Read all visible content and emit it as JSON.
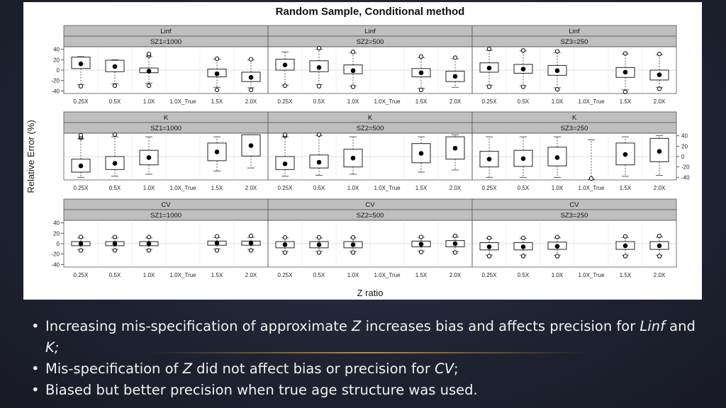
{
  "chart_data": {
    "type": "boxplot",
    "title": "Random Sample, Conditional method",
    "xlabel": "Z ratio",
    "ylabel": "Relative Error (%)",
    "categories": [
      "0.25X",
      "0.5X",
      "1.0X",
      "1.0X_True",
      "1.5X",
      "2.0X"
    ],
    "ylim": [
      -45,
      45
    ],
    "yticks": [
      40,
      20,
      0,
      -20,
      -40
    ],
    "panels": [
      {
        "param": "Linf",
        "size": "SZ1=1000",
        "boxes": [
          {
            "median": 12,
            "q1": 3,
            "q3": 25,
            "wl": -28,
            "wh": 26,
            "out": [
              -31
            ]
          },
          {
            "median": 7,
            "q1": -3,
            "q3": 19,
            "wl": -26,
            "wh": 20,
            "out": [
              -30
            ]
          },
          {
            "median": -2,
            "q1": -5,
            "q3": 4,
            "wl": -25,
            "wh": 26,
            "out": [
              -30,
              28,
              31
            ]
          },
          null,
          {
            "median": -7,
            "q1": -13,
            "q3": 2,
            "wl": -33,
            "wh": 21,
            "out": [
              -38,
              22
            ]
          },
          {
            "median": -14,
            "q1": -22,
            "q3": -4,
            "wl": -34,
            "wh": 20,
            "out": [
              -38,
              21
            ]
          }
        ]
      },
      {
        "param": "Linf",
        "size": "SZ2=500",
        "boxes": [
          {
            "median": 10,
            "q1": 0,
            "q3": 21,
            "wl": -29,
            "wh": 35,
            "out": [
              -30
            ]
          },
          {
            "median": 5,
            "q1": -3,
            "q3": 18,
            "wl": -28,
            "wh": 40,
            "out": [
              -31,
              43
            ]
          },
          {
            "median": -1,
            "q1": -7,
            "q3": 10,
            "wl": -30,
            "wh": 33,
            "out": [
              -32,
              35
            ]
          },
          null,
          {
            "median": -5,
            "q1": -13,
            "q3": 3,
            "wl": -35,
            "wh": 24,
            "out": [
              -38,
              26
            ]
          },
          {
            "median": -12,
            "q1": -22,
            "q3": -2,
            "wl": -33,
            "wh": 22,
            "out": [
              24
            ]
          }
        ]
      },
      {
        "param": "Linf",
        "size": "SZ3=250",
        "boxes": [
          {
            "median": 4,
            "q1": -4,
            "q3": 14,
            "wl": -29,
            "wh": 38,
            "out": [
              -32,
              41
            ]
          },
          {
            "median": 2,
            "q1": -6,
            "q3": 11,
            "wl": -30,
            "wh": 37,
            "out": [
              -32,
              38
            ]
          },
          {
            "median": -1,
            "q1": -10,
            "q3": 9,
            "wl": -34,
            "wh": 34,
            "out": [
              -37,
              36
            ]
          },
          null,
          {
            "median": -4,
            "q1": -14,
            "q3": 5,
            "wl": -38,
            "wh": 31,
            "out": [
              -42,
              32
            ]
          },
          {
            "median": -9,
            "q1": -19,
            "q3": 0,
            "wl": -33,
            "wh": 30,
            "out": [
              -36,
              31
            ]
          }
        ]
      },
      {
        "param": "K",
        "size": "SZ1=1000",
        "boxes": [
          {
            "median": -18,
            "q1": -30,
            "q3": -5,
            "wl": -40,
            "wh": 34,
            "out": [
              36,
              38,
              41
            ]
          },
          {
            "median": -13,
            "q1": -25,
            "q3": 0,
            "wl": -38,
            "wh": 38,
            "out": [
              43
            ]
          },
          {
            "median": -2,
            "q1": -16,
            "q3": 12,
            "wl": -34,
            "wh": 38,
            "out": []
          },
          null,
          {
            "median": 9,
            "q1": -8,
            "q3": 26,
            "wl": -28,
            "wh": 38,
            "out": []
          },
          {
            "median": 21,
            "q1": 1,
            "q3": 42,
            "wl": -22,
            "wh": 42,
            "out": []
          }
        ]
      },
      {
        "param": "K",
        "size": "SZ2=500",
        "boxes": [
          {
            "median": -14,
            "q1": -25,
            "q3": 0,
            "wl": -38,
            "wh": 38,
            "out": [
              40,
              42
            ]
          },
          {
            "median": -11,
            "q1": -22,
            "q3": 3,
            "wl": -36,
            "wh": 40,
            "out": [
              44
            ]
          },
          {
            "median": -3,
            "q1": -20,
            "q3": 14,
            "wl": -34,
            "wh": 38,
            "out": []
          },
          null,
          {
            "median": 6,
            "q1": -12,
            "q3": 25,
            "wl": -30,
            "wh": 38,
            "out": []
          },
          {
            "median": 16,
            "q1": -5,
            "q3": 38,
            "wl": -26,
            "wh": 42,
            "out": []
          }
        ]
      },
      {
        "param": "K",
        "size": "SZ3=250",
        "boxes": [
          {
            "median": -5,
            "q1": -20,
            "q3": 10,
            "wl": -40,
            "wh": 38,
            "out": []
          },
          {
            "median": -4,
            "q1": -19,
            "q3": 12,
            "wl": -40,
            "wh": 38,
            "out": []
          },
          {
            "median": -2,
            "q1": -18,
            "q3": 18,
            "wl": -40,
            "wh": 38,
            "out": []
          },
          {
            "median": null,
            "q1": null,
            "q3": null,
            "wl": -44,
            "wh": 32,
            "out": [
              -43
            ]
          },
          {
            "median": 4,
            "q1": -16,
            "q3": 26,
            "wl": -38,
            "wh": 38,
            "out": []
          },
          {
            "median": 10,
            "q1": -10,
            "q3": 35,
            "wl": -36,
            "wh": 40,
            "out": []
          }
        ]
      },
      {
        "param": "CV",
        "size": "SZ1=1000",
        "boxes": [
          {
            "median": 0,
            "q1": -4,
            "q3": 4,
            "wl": -11,
            "wh": 11,
            "out": [
              -13,
              13
            ]
          },
          {
            "median": 0,
            "q1": -4,
            "q3": 4,
            "wl": -11,
            "wh": 11,
            "out": [
              -13,
              13
            ]
          },
          {
            "median": 0,
            "q1": -4,
            "q3": 4,
            "wl": -11,
            "wh": 11,
            "out": [
              -13,
              13
            ]
          },
          null,
          {
            "median": 1,
            "q1": -3,
            "q3": 5,
            "wl": -10,
            "wh": 12,
            "out": [
              -13,
              14
            ]
          },
          {
            "median": 1,
            "q1": -3,
            "q3": 5,
            "wl": -11,
            "wh": 12,
            "out": [
              -13,
              15
            ]
          }
        ]
      },
      {
        "param": "CV",
        "size": "SZ2=500",
        "boxes": [
          {
            "median": -2,
            "q1": -8,
            "q3": 4,
            "wl": -15,
            "wh": 11,
            "out": [
              -17,
              12
            ]
          },
          {
            "median": -2,
            "q1": -8,
            "q3": 4,
            "wl": -15,
            "wh": 11,
            "out": [
              -17,
              12
            ]
          },
          {
            "median": -2,
            "q1": -8,
            "q3": 4,
            "wl": -15,
            "wh": 11,
            "out": [
              -17,
              12
            ]
          },
          null,
          {
            "median": -1,
            "q1": -6,
            "q3": 5,
            "wl": -14,
            "wh": 12,
            "out": [
              -16,
              13
            ]
          },
          {
            "median": 0,
            "q1": -6,
            "q3": 6,
            "wl": -15,
            "wh": 13,
            "out": [
              -17,
              15
            ]
          }
        ]
      },
      {
        "param": "CV",
        "size": "SZ3=250",
        "boxes": [
          {
            "median": -6,
            "q1": -12,
            "q3": 2,
            "wl": -22,
            "wh": 10,
            "out": [
              -24,
              11
            ]
          },
          {
            "median": -6,
            "q1": -12,
            "q3": 2,
            "wl": -22,
            "wh": 10,
            "out": [
              -24,
              11
            ]
          },
          {
            "median": -5,
            "q1": -11,
            "q3": 3,
            "wl": -22,
            "wh": 11,
            "out": [
              -24,
              13
            ]
          },
          null,
          {
            "median": -4,
            "q1": -11,
            "q3": 4,
            "wl": -22,
            "wh": 12,
            "out": [
              -24,
              14
            ]
          },
          {
            "median": -4,
            "q1": -11,
            "q3": 4,
            "wl": -22,
            "wh": 13,
            "out": [
              -24,
              15
            ]
          }
        ]
      }
    ]
  },
  "bullets": [
    {
      "parts": [
        {
          "text": "Increasing mis-specification of approximate ",
          "italic": false
        },
        {
          "text": "Z",
          "italic": true
        },
        {
          "text": " increases bias and affects precision for ",
          "italic": false
        },
        {
          "text": "Linf",
          "italic": true
        },
        {
          "text": " and ",
          "italic": false
        },
        {
          "text": "K;",
          "italic": true
        }
      ]
    },
    {
      "parts": [
        {
          "text": "Mis-specification of ",
          "italic": false
        },
        {
          "text": "Z",
          "italic": true
        },
        {
          "text": " did not affect bias or precision for ",
          "italic": false
        },
        {
          "text": "CV",
          "italic": true
        },
        {
          "text": ";",
          "italic": false
        }
      ]
    },
    {
      "parts": [
        {
          "text": "Biased but better precision when true age structure was used.",
          "italic": false
        }
      ]
    }
  ],
  "bullet_symbol": "•"
}
